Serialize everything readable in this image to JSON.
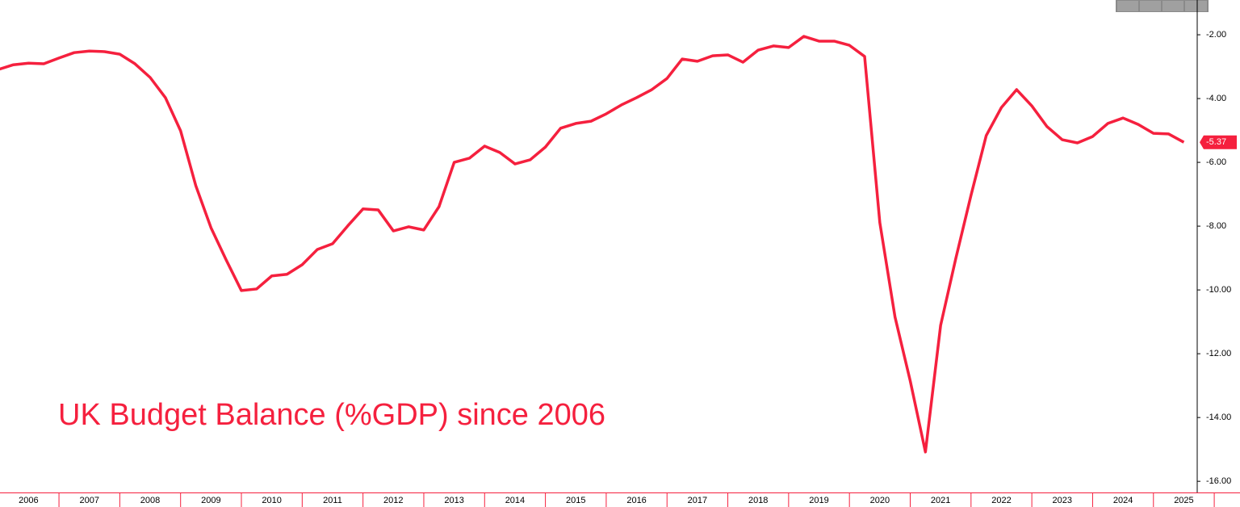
{
  "chart_data": {
    "type": "line",
    "title": "UK Budget Balance (%GDP) since 2006",
    "color": "#f5203e",
    "x": [
      2006,
      2006.25,
      2006.5,
      2006.75,
      2007,
      2007.25,
      2007.5,
      2007.75,
      2008,
      2008.25,
      2008.5,
      2008.75,
      2009,
      2009.25,
      2009.5,
      2009.75,
      2010,
      2010.25,
      2010.5,
      2010.75,
      2011,
      2011.25,
      2011.5,
      2011.75,
      2012,
      2012.25,
      2012.5,
      2012.75,
      2013,
      2013.25,
      2013.5,
      2013.75,
      2014,
      2014.25,
      2014.5,
      2014.75,
      2015,
      2015.25,
      2015.5,
      2015.75,
      2016,
      2016.25,
      2016.5,
      2016.75,
      2017,
      2017.25,
      2017.5,
      2017.75,
      2018,
      2018.25,
      2018.5,
      2018.75,
      2019,
      2019.25,
      2019.5,
      2019.75,
      2020,
      2020.25,
      2020.5,
      2020.75,
      2021,
      2021.25,
      2021.5,
      2021.75,
      2022,
      2022.25,
      2022.5,
      2022.75,
      2023,
      2023.25,
      2023.5,
      2023.75,
      2024,
      2024.25,
      2024.5,
      2024.75,
      2025,
      2025.25,
      2025.5
    ],
    "values": [
      -3.09,
      -2.94,
      -2.89,
      -2.91,
      -2.73,
      -2.56,
      -2.51,
      -2.53,
      -2.61,
      -2.91,
      -3.34,
      -3.97,
      -5.01,
      -6.73,
      -8.05,
      -9.06,
      -10.02,
      -9.97,
      -9.56,
      -9.51,
      -9.21,
      -8.73,
      -8.55,
      -7.99,
      -7.46,
      -7.49,
      -8.15,
      -8.02,
      -8.12,
      -7.39,
      -6.0,
      -5.87,
      -5.49,
      -5.69,
      -6.05,
      -5.92,
      -5.52,
      -4.93,
      -4.78,
      -4.71,
      -4.48,
      -4.2,
      -3.97,
      -3.72,
      -3.37,
      -2.76,
      -2.83,
      -2.66,
      -2.63,
      -2.86,
      -2.48,
      -2.35,
      -2.4,
      -2.05,
      -2.2,
      -2.2,
      -2.33,
      -2.68,
      -7.89,
      -10.85,
      -12.85,
      -15.08,
      -11.11,
      -9.01,
      -7.03,
      -5.16,
      -4.28,
      -3.72,
      -4.23,
      -4.88,
      -5.29,
      -5.39,
      -5.19,
      -4.78,
      -4.61,
      -4.81,
      -5.09,
      -5.11,
      -5.37
    ],
    "xlim": [
      2006.03,
      2025.72
    ],
    "xticks": [
      {
        "value": 2006.5,
        "label": "2006"
      },
      {
        "value": 2007.5,
        "label": "2007"
      },
      {
        "value": 2008.5,
        "label": "2008"
      },
      {
        "value": 2009.5,
        "label": "2009"
      },
      {
        "value": 2010.5,
        "label": "2010"
      },
      {
        "value": 2011.5,
        "label": "2011"
      },
      {
        "value": 2012.5,
        "label": "2012"
      },
      {
        "value": 2013.5,
        "label": "2013"
      },
      {
        "value": 2014.5,
        "label": "2014"
      },
      {
        "value": 2015.5,
        "label": "2015"
      },
      {
        "value": 2016.5,
        "label": "2016"
      },
      {
        "value": 2017.5,
        "label": "2017"
      },
      {
        "value": 2018.5,
        "label": "2018"
      },
      {
        "value": 2019.5,
        "label": "2019"
      },
      {
        "value": 2020.5,
        "label": "2020"
      },
      {
        "value": 2021.5,
        "label": "2021"
      },
      {
        "value": 2022.5,
        "label": "2022"
      },
      {
        "value": 2023.5,
        "label": "2023"
      },
      {
        "value": 2024.5,
        "label": "2024"
      },
      {
        "value": 2025.5,
        "label": "2025"
      }
    ],
    "ylim": [
      -16.35,
      -0.91
    ],
    "yticks": [
      {
        "value": -2,
        "label": "-2.00"
      },
      {
        "value": -4,
        "label": "-4.00"
      },
      {
        "value": -6,
        "label": "-6.00"
      },
      {
        "value": -8,
        "label": "-8.00"
      },
      {
        "value": -10,
        "label": "-10.00"
      },
      {
        "value": -12,
        "label": "-12.00"
      },
      {
        "value": -14,
        "label": "-14.00"
      },
      {
        "value": -16,
        "label": "-16.00"
      }
    ],
    "grid": false
  }
}
